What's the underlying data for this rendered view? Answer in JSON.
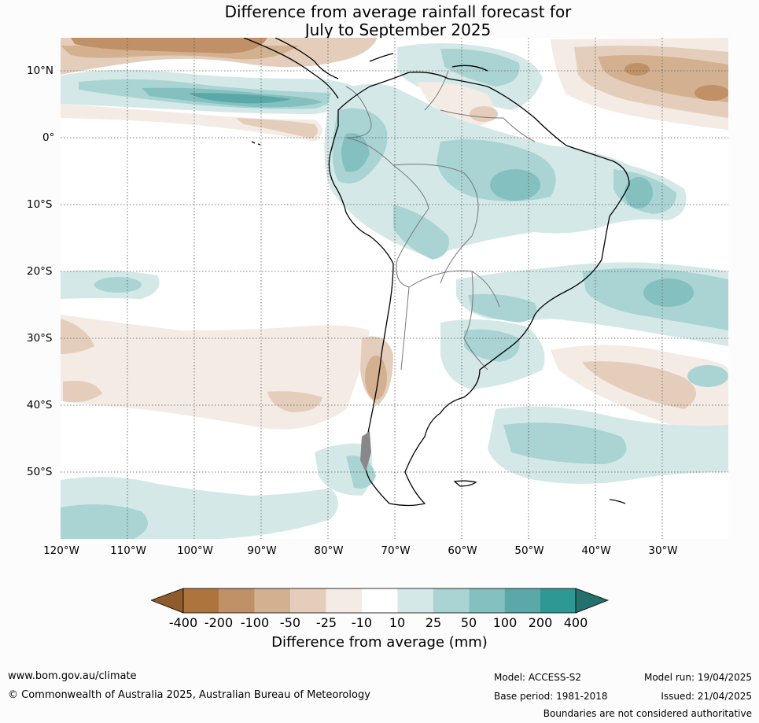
{
  "title": {
    "line1": "Difference from average rainfall forecast for",
    "line2": "July to September 2025"
  },
  "map": {
    "lat_labels": [
      "10°N",
      "0°",
      "10°S",
      "20°S",
      "30°S",
      "40°S",
      "50°S"
    ],
    "lon_labels": [
      "120°W",
      "110°W",
      "100°W",
      "90°W",
      "80°W",
      "70°W",
      "60°W",
      "50°W",
      "40°W",
      "30°W"
    ]
  },
  "legend": {
    "title": "Difference from average (mm)",
    "ticks": [
      "-400",
      "-200",
      "-100",
      "-50",
      "-25",
      "-10",
      "10",
      "25",
      "50",
      "100",
      "200",
      "400"
    ],
    "colors": [
      "#8f5a2c",
      "#ad753d",
      "#c09067",
      "#d3b190",
      "#e4cebb",
      "#f4ebe5",
      "#ffffff",
      "#d4e9e7",
      "#a9d4d3",
      "#84c0bf",
      "#5aa9a8",
      "#2e9894",
      "#24706c"
    ]
  },
  "footer": {
    "website": "www.bom.gov.au/climate",
    "copyright": "© Commonwealth of Australia 2025, Australian Bureau of Meteorology",
    "model": "Model: ACCESS-S2",
    "base_period": "Base period: 1981-2018",
    "model_run": "Model run: 19/04/2025",
    "issued": "Issued: 21/04/2025",
    "disclaimer": "Boundaries are not considered authoritative"
  }
}
